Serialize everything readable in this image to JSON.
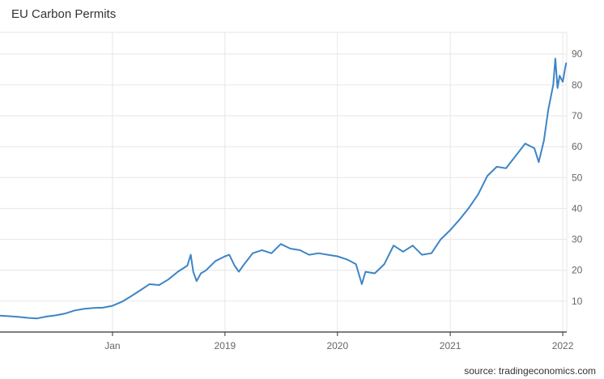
{
  "source": "source: tradingeconomics.com",
  "chart_data": {
    "type": "line",
    "title": "EU Carbon Permits",
    "xlabel": "",
    "ylabel": "",
    "x_tick_labels": [
      "Jan",
      "2019",
      "2020",
      "2021",
      "2022"
    ],
    "y_ticks": [
      10,
      20,
      30,
      40,
      50,
      60,
      70,
      80,
      90
    ],
    "xlim": [
      "2017-01-01",
      "2022-01-14"
    ],
    "ylim": [
      0,
      97
    ],
    "grid": true,
    "colors": {
      "line": "#3d85c6",
      "grid": "#e6e6e6",
      "axis": "#333333"
    },
    "series": [
      {
        "name": "",
        "points": [
          [
            "2017-01-01",
            5.3
          ],
          [
            "2017-02-01",
            5.1
          ],
          [
            "2017-03-01",
            4.9
          ],
          [
            "2017-04-01",
            4.6
          ],
          [
            "2017-05-01",
            4.4
          ],
          [
            "2017-06-01",
            5.0
          ],
          [
            "2017-07-01",
            5.4
          ],
          [
            "2017-08-01",
            6.0
          ],
          [
            "2017-09-01",
            7.0
          ],
          [
            "2017-10-01",
            7.5
          ],
          [
            "2017-11-01",
            7.8
          ],
          [
            "2017-12-01",
            7.9
          ],
          [
            "2018-01-01",
            8.5
          ],
          [
            "2018-02-01",
            9.8
          ],
          [
            "2018-03-01",
            11.5
          ],
          [
            "2018-04-01",
            13.5
          ],
          [
            "2018-05-01",
            15.5
          ],
          [
            "2018-06-01",
            15.2
          ],
          [
            "2018-07-01",
            17.0
          ],
          [
            "2018-08-01",
            19.5
          ],
          [
            "2018-09-01",
            21.5
          ],
          [
            "2018-09-12",
            25.0
          ],
          [
            "2018-09-20",
            19.5
          ],
          [
            "2018-10-01",
            16.5
          ],
          [
            "2018-10-15",
            19.0
          ],
          [
            "2018-11-01",
            20.0
          ],
          [
            "2018-12-01",
            23.0
          ],
          [
            "2019-01-01",
            24.5
          ],
          [
            "2019-01-15",
            25.0
          ],
          [
            "2019-02-01",
            21.5
          ],
          [
            "2019-02-15",
            19.5
          ],
          [
            "2019-03-01",
            21.5
          ],
          [
            "2019-04-01",
            25.5
          ],
          [
            "2019-05-01",
            26.5
          ],
          [
            "2019-06-01",
            25.5
          ],
          [
            "2019-07-01",
            28.5
          ],
          [
            "2019-08-01",
            27.0
          ],
          [
            "2019-09-01",
            26.5
          ],
          [
            "2019-10-01",
            25.0
          ],
          [
            "2019-11-01",
            25.5
          ],
          [
            "2019-12-01",
            25.0
          ],
          [
            "2020-01-01",
            24.5
          ],
          [
            "2020-02-01",
            23.5
          ],
          [
            "2020-03-01",
            22.0
          ],
          [
            "2020-03-20",
            15.5
          ],
          [
            "2020-04-01",
            19.5
          ],
          [
            "2020-05-01",
            19.0
          ],
          [
            "2020-06-01",
            22.0
          ],
          [
            "2020-07-01",
            28.0
          ],
          [
            "2020-08-01",
            26.0
          ],
          [
            "2020-09-01",
            28.0
          ],
          [
            "2020-10-01",
            25.0
          ],
          [
            "2020-11-01",
            25.5
          ],
          [
            "2020-12-01",
            30.0
          ],
          [
            "2021-01-01",
            33.0
          ],
          [
            "2021-02-01",
            36.5
          ],
          [
            "2021-03-01",
            40.0
          ],
          [
            "2021-04-01",
            44.5
          ],
          [
            "2021-05-01",
            50.5
          ],
          [
            "2021-06-01",
            53.5
          ],
          [
            "2021-07-01",
            53.0
          ],
          [
            "2021-08-01",
            57.0
          ],
          [
            "2021-09-01",
            61.0
          ],
          [
            "2021-10-01",
            59.5
          ],
          [
            "2021-10-15",
            55.0
          ],
          [
            "2021-11-01",
            62.0
          ],
          [
            "2021-11-15",
            72.0
          ],
          [
            "2021-12-01",
            80.0
          ],
          [
            "2021-12-08",
            88.5
          ],
          [
            "2021-12-15",
            79.0
          ],
          [
            "2021-12-22",
            83.0
          ],
          [
            "2022-01-01",
            81.0
          ],
          [
            "2022-01-08",
            85.0
          ],
          [
            "2022-01-12",
            87.0
          ]
        ]
      }
    ]
  }
}
